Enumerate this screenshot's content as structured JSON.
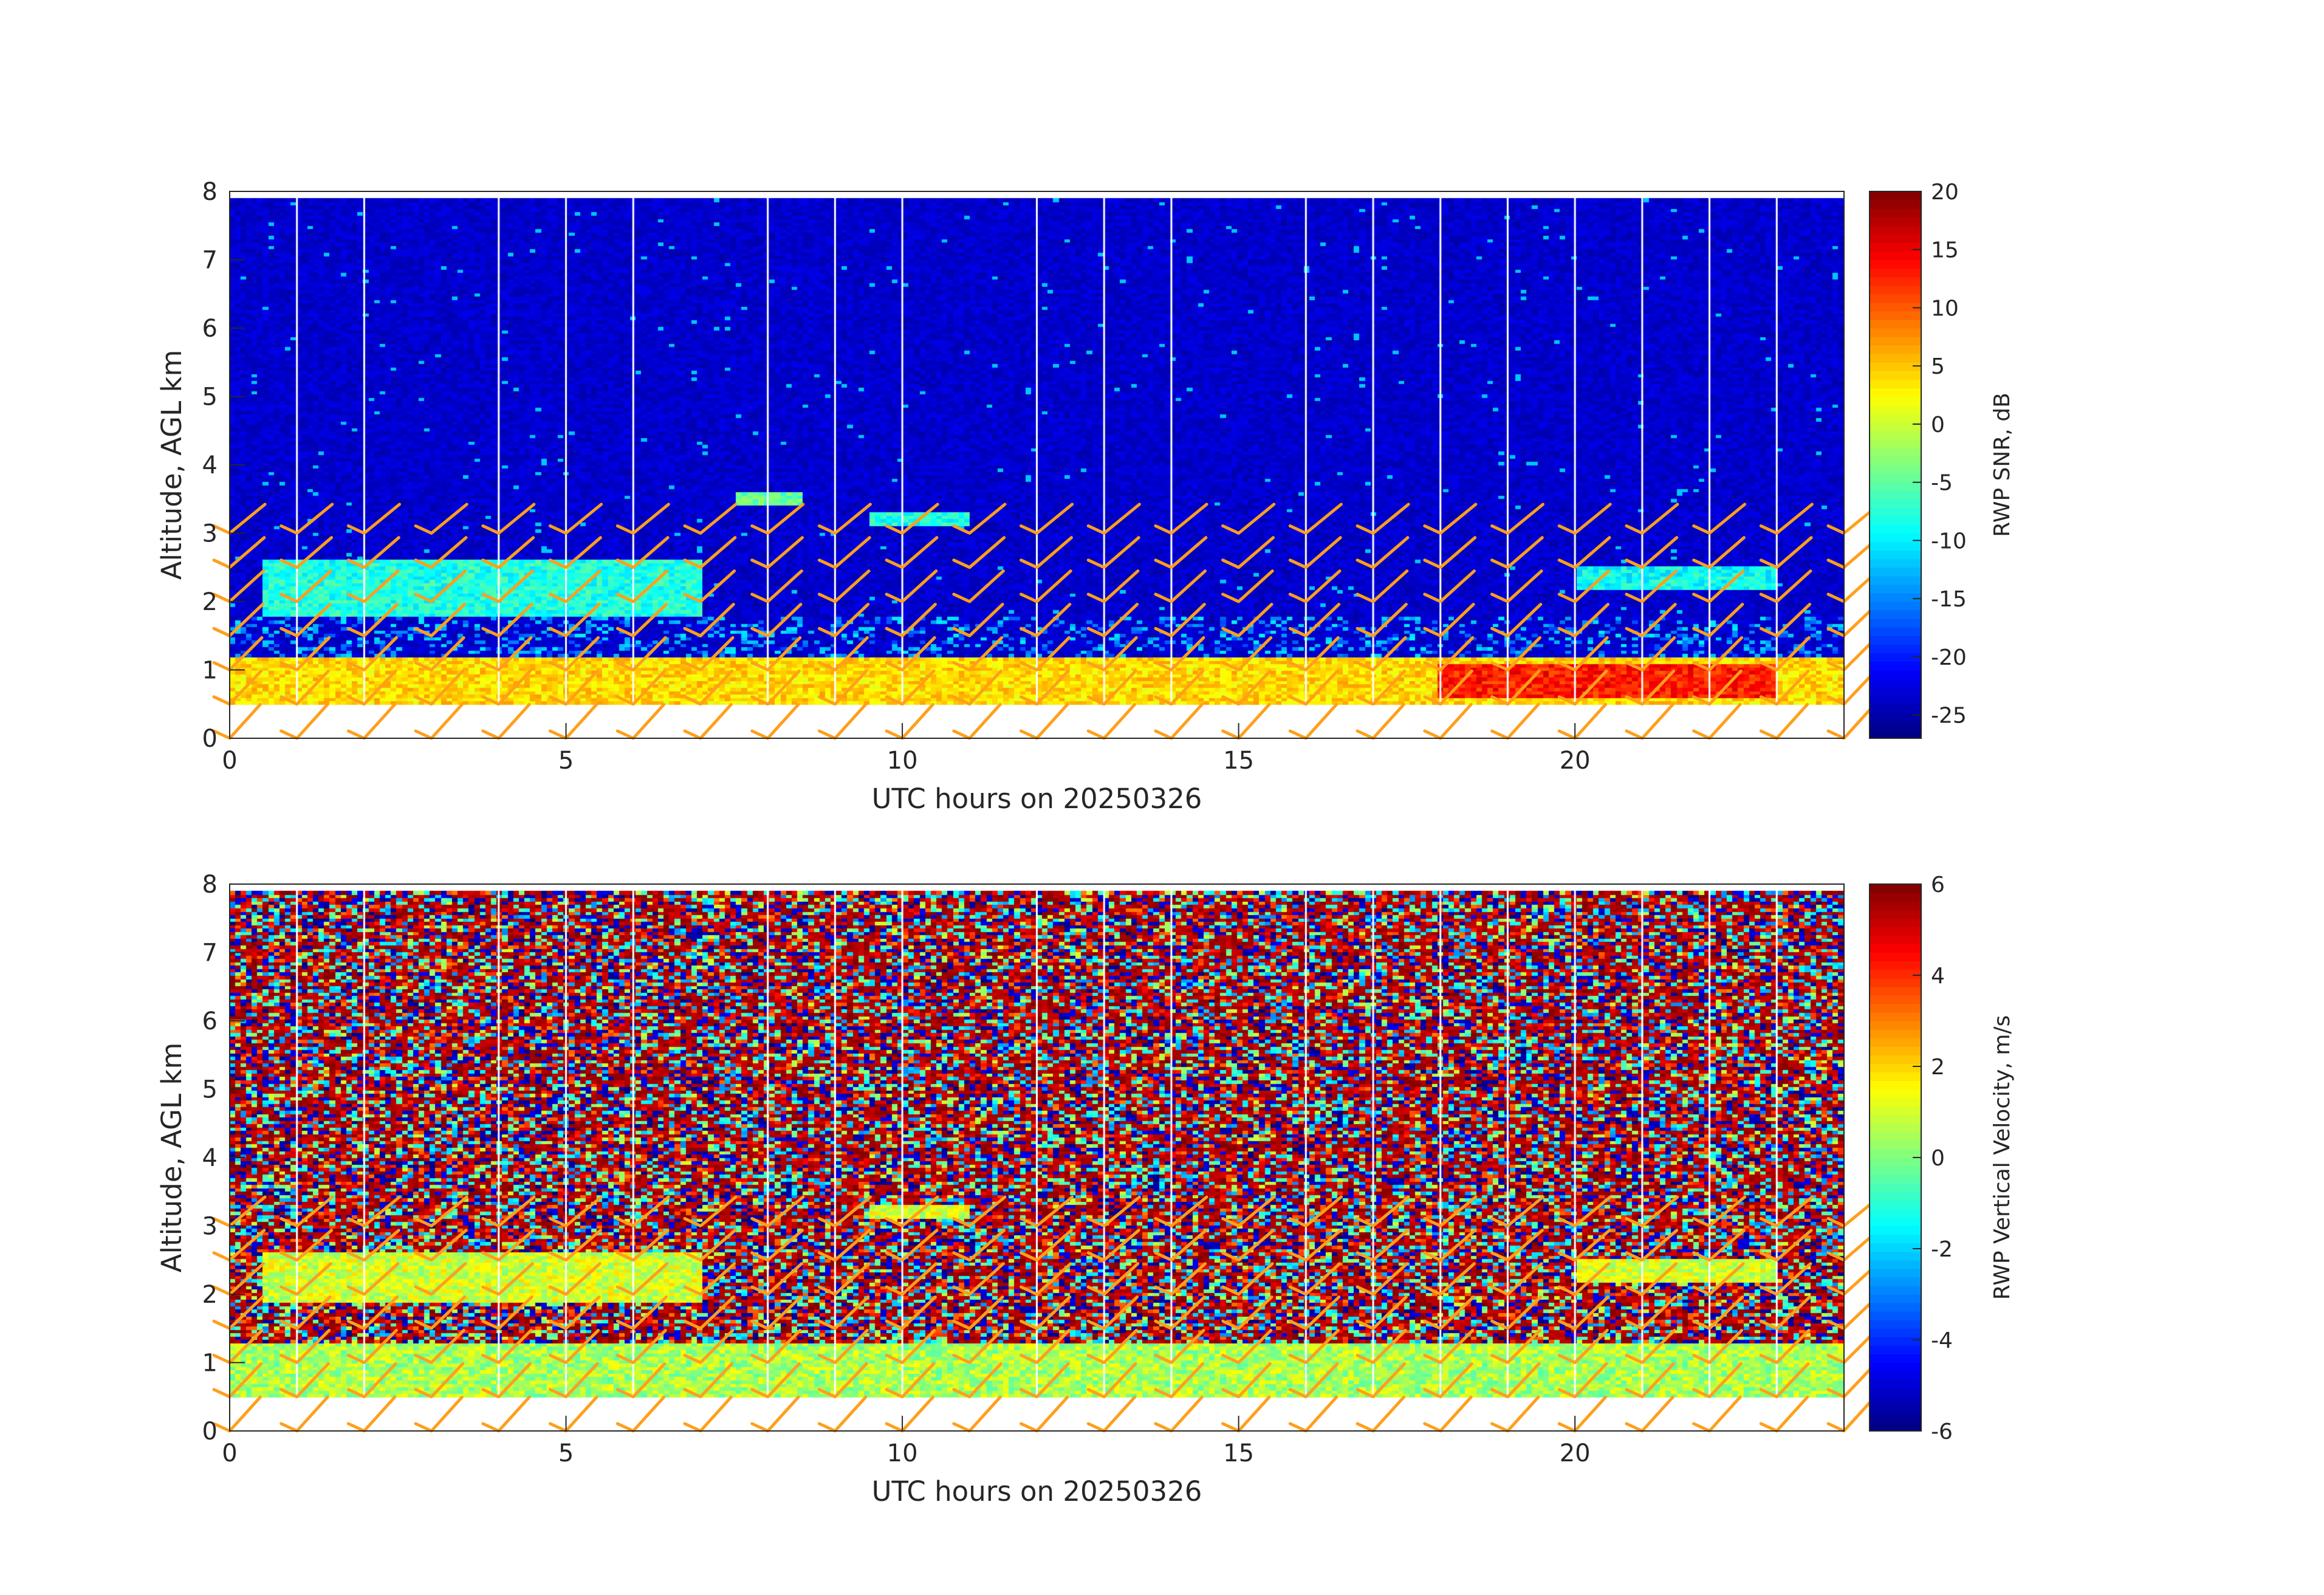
{
  "chart_data": [
    {
      "type": "heatmap",
      "quantity": "snr",
      "xlabel": "UTC hours on 20250326",
      "ylabel": "Altitude, AGL km",
      "xlim": [
        0,
        24
      ],
      "ylim": [
        0,
        8
      ],
      "x_ticks": [
        "0",
        "5",
        "10",
        "15",
        "20"
      ],
      "y_ticks": [
        "0",
        "1",
        "2",
        "3",
        "4",
        "5",
        "6",
        "7",
        "8"
      ],
      "data_bottom_km": 0.5,
      "data_top_km": 7.9,
      "gap_hours": [
        1,
        2,
        4,
        5,
        6,
        8,
        9,
        10,
        12,
        13,
        14,
        16,
        17,
        18,
        19,
        20,
        21,
        22,
        23
      ],
      "colorbar": {
        "label": "RWP SNR, dB",
        "range": [
          -27,
          20
        ],
        "ticks": [
          "20",
          "15",
          "10",
          "5",
          "0",
          "-5",
          "-10",
          "-15",
          "-20",
          "-25"
        ],
        "colormap": "jet"
      },
      "features": [
        {
          "desc": "strong surface-layer echo",
          "x": [
            0,
            24
          ],
          "y": [
            0.5,
            1.2
          ],
          "snr_db": 4
        },
        {
          "desc": "peak echo layer",
          "x": [
            18,
            23
          ],
          "y": [
            0.6,
            1.1
          ],
          "snr_db": 13
        },
        {
          "desc": "elevated layer",
          "x": [
            0.5,
            7
          ],
          "y": [
            1.8,
            2.6
          ],
          "snr_db": -8
        },
        {
          "desc": "elevated layer",
          "x": [
            7.5,
            8.5
          ],
          "y": [
            3.4,
            3.6
          ],
          "snr_db": -5
        },
        {
          "desc": "elevated layer",
          "x": [
            9.5,
            11
          ],
          "y": [
            3.1,
            3.3
          ],
          "snr_db": -8
        },
        {
          "desc": "elevated layer",
          "x": [
            20,
            23
          ],
          "y": [
            2.2,
            2.5
          ],
          "snr_db": -9
        }
      ]
    },
    {
      "type": "heatmap",
      "quantity": "vertical_velocity",
      "xlabel": "UTC hours on 20250326",
      "ylabel": "Altitude, AGL km",
      "xlim": [
        0,
        24
      ],
      "ylim": [
        0,
        8
      ],
      "x_ticks": [
        "0",
        "5",
        "10",
        "15",
        "20"
      ],
      "y_ticks": [
        "0",
        "1",
        "2",
        "3",
        "4",
        "5",
        "6",
        "7",
        "8"
      ],
      "data_bottom_km": 0.5,
      "data_top_km": 7.9,
      "gap_hours": [
        1,
        2,
        4,
        5,
        6,
        8,
        9,
        10,
        12,
        13,
        14,
        16,
        17,
        18,
        19,
        20,
        21,
        22,
        23
      ],
      "colorbar": {
        "label": "RWP Vertical Velocity, m/s",
        "range": [
          -6,
          6
        ],
        "ticks": [
          "6",
          "4",
          "2",
          "0",
          "-2",
          "-4",
          "-6"
        ],
        "colormap": "jet"
      },
      "features": [
        {
          "desc": "near-zero velocity boundary layer",
          "x": [
            0,
            24
          ],
          "y": [
            0.5,
            1.3
          ],
          "velocity": 0.5
        },
        {
          "desc": "near-zero elevated layer",
          "x": [
            0.5,
            7
          ],
          "y": [
            1.9,
            2.6
          ],
          "velocity": 1
        },
        {
          "desc": "near-zero elevated layer",
          "x": [
            9.5,
            11
          ],
          "y": [
            3.1,
            3.3
          ],
          "velocity": 1
        },
        {
          "desc": "near-zero elevated layer",
          "x": [
            20,
            23
          ],
          "y": [
            2.2,
            2.5
          ],
          "velocity": 1
        }
      ]
    }
  ],
  "wind_barbs": {
    "color": "#ff9f1c",
    "times_hours": [
      0,
      1,
      2,
      3,
      4,
      5,
      6,
      7,
      8,
      9,
      10,
      11,
      12,
      13,
      14,
      15,
      16,
      17,
      18,
      19,
      20,
      21,
      22,
      23,
      24
    ],
    "heights_km": [
      0,
      0.5,
      1.0,
      1.5,
      2.0,
      2.5,
      3.0
    ],
    "direction": "southwesterly"
  }
}
